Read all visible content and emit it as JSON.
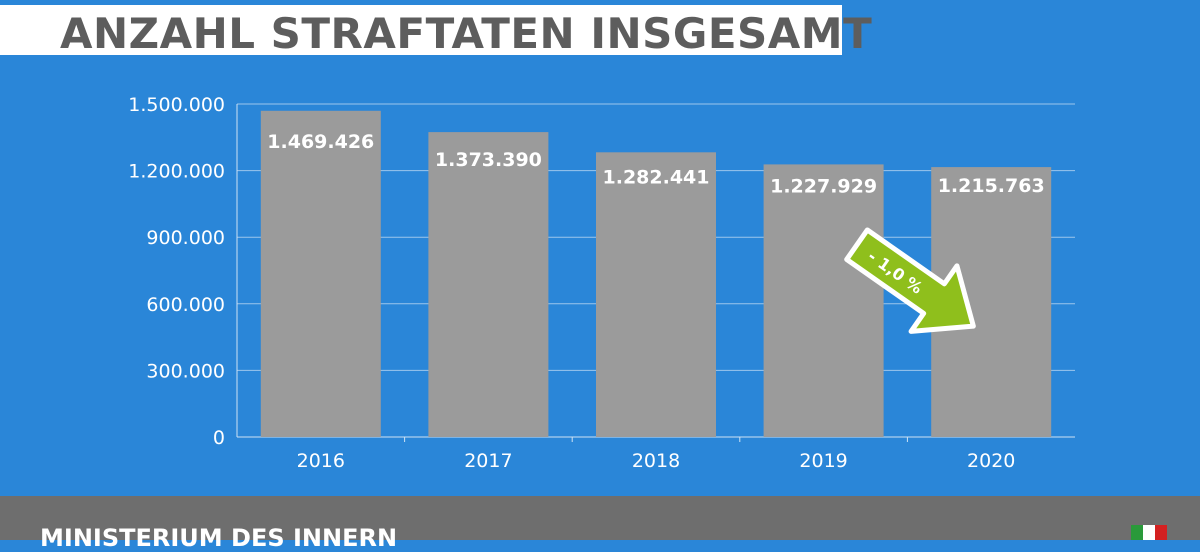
{
  "header": {
    "title": "ANZAHL STRAFTATEN INSGESAMT"
  },
  "footer": {
    "text": "MINISTERIUM DES INNERN"
  },
  "colors": {
    "background": "#2a86d8",
    "bar": "#9b9b9b",
    "arrow": "#8fbf1c",
    "footer": "#6e6e6e"
  },
  "chart_data": {
    "type": "bar",
    "categories": [
      "2016",
      "2017",
      "2018",
      "2019",
      "2020"
    ],
    "values": [
      1469426,
      1373390,
      1282441,
      1227929,
      1215763
    ],
    "data_labels": [
      "1.469.426",
      "1.373.390",
      "1.282.441",
      "1.227.929",
      "1.215.763"
    ],
    "yticks": [
      "0",
      "300.000",
      "600.000",
      "900.000",
      "1.200.000",
      "1.500.000"
    ],
    "ylim": [
      0,
      1500000
    ],
    "grid": true,
    "annotation": {
      "text": "- 1,0 %",
      "icon": "arrow-down-right-icon"
    }
  }
}
